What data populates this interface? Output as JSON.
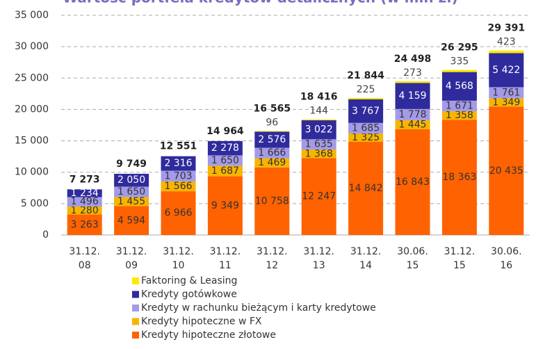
{
  "chart_data": {
    "type": "stacked_bar",
    "title": "Wartość portfela kredytów detalicznych (w mln zł)",
    "categories": [
      "31.12.\n08",
      "31.12.\n09",
      "31.12.\n10",
      "31.12.\n11",
      "31.12.\n12",
      "31.12.\n13",
      "31.12.\n14",
      "30.06.\n15",
      "31.12.\n15",
      "30.06.\n16"
    ],
    "ylim": [
      0,
      35000
    ],
    "yticks": [
      0,
      {
        "value": 5000,
        "label": "5 000"
      },
      {
        "value": 10000,
        "label": "10 000"
      },
      {
        "value": 15000,
        "label": "15 000"
      },
      {
        "value": 20000,
        "label": "20 000"
      },
      {
        "value": 25000,
        "label": "25 000"
      },
      {
        "value": 30000,
        "label": "30 000"
      },
      {
        "value": 35000,
        "label": "35 000"
      }
    ],
    "grid": true,
    "legend": "bottom-left",
    "series": [
      {
        "name": "Kredyty hipoteczne złotowe",
        "color": "#ff6200",
        "values": [
          3263,
          4594,
          6966,
          9349,
          10758,
          12247,
          14842,
          16843,
          18363,
          20435
        ],
        "value_labels": [
          "3 263",
          "4 594",
          "6 966",
          "9 349",
          "10 758",
          "12 247",
          "14 842",
          "16 843",
          "18 363",
          "20 435"
        ]
      },
      {
        "name": "Kredyty hipoteczne w FX",
        "color": "#f7b500",
        "values": [
          1280,
          1455,
          1566,
          1687,
          1469,
          1368,
          1325,
          1445,
          1358,
          1349
        ],
        "value_labels": [
          "1 280",
          "1 455",
          "1 566",
          "1 687",
          "1 469",
          "1 368",
          "1 325",
          "1 445",
          "1 358",
          "1 349"
        ]
      },
      {
        "name": "Kredyty w rachunku bieżącym i karty kredytowe",
        "color": "#a39be8",
        "values": [
          1496,
          1650,
          1703,
          1650,
          1666,
          1635,
          1685,
          1778,
          1671,
          1761
        ],
        "value_labels": [
          "1 496",
          "1 650",
          "1 703",
          "1 650",
          "1 666",
          "1 635",
          "1 685",
          "1 778",
          "1 671",
          "1 761"
        ]
      },
      {
        "name": "Kredyty gotówkowe",
        "color": "#2f2b9c",
        "values": [
          1234,
          2050,
          2316,
          2278,
          2576,
          3022,
          3767,
          4159,
          4568,
          5422
        ],
        "value_labels": [
          "1 234",
          "2 050",
          "2 316",
          "2 278",
          "2 576",
          "3 022",
          "3 767",
          "4 159",
          "4 568",
          "5 422"
        ]
      },
      {
        "name": "Faktoring & Leasing",
        "color": "#ffe800",
        "values": [
          null,
          null,
          null,
          null,
          96,
          144,
          225,
          273,
          335,
          423
        ]
      }
    ],
    "totals": {
      "values": [
        7273,
        9749,
        12551,
        14964,
        16565,
        18416,
        21844,
        24498,
        26295,
        29391
      ],
      "value_labels": [
        "7 273",
        "9 749",
        "12 551",
        "14 964",
        "16 565",
        "18 416",
        "21 844",
        "24 498",
        "26 295",
        "29 391"
      ]
    }
  }
}
